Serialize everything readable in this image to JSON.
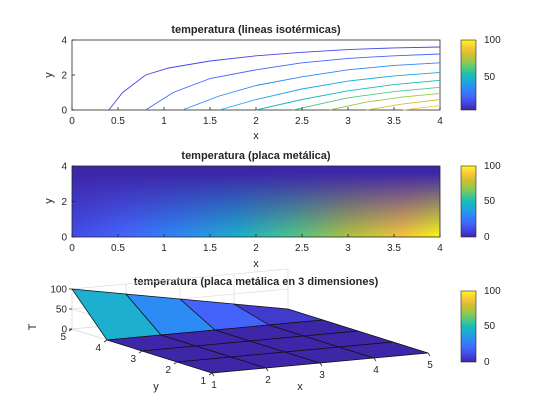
{
  "colormap": [
    "#3e26a8",
    "#4347e2",
    "#4367fd",
    "#2e87f7",
    "#1fa6df",
    "#18bdb6",
    "#53c981",
    "#9ac84a",
    "#d3bf2e",
    "#fcc83a",
    "#f9fb15"
  ],
  "chart_data": [
    {
      "type": "contour",
      "title": "temperatura (lineas isotérmicas)",
      "xlabel": "x",
      "ylabel": "y",
      "xlim": [
        0,
        4
      ],
      "ylim": [
        0,
        4
      ],
      "xticks": [
        "0",
        "0.5",
        "1",
        "1.5",
        "2",
        "2.5",
        "3",
        "3.5",
        "4"
      ],
      "yticks": [
        "0",
        "2",
        "4"
      ],
      "colorbar": {
        "ticks": [
          "50",
          "100"
        ],
        "range": [
          0,
          100
        ]
      },
      "series": [
        {
          "level": 10,
          "x": [
            0.4,
            0.55,
            0.8,
            1.05,
            1.5,
            2,
            2.5,
            3,
            3.5,
            4
          ],
          "y": [
            0,
            1,
            2,
            2.4,
            2.8,
            3.1,
            3.3,
            3.45,
            3.55,
            3.6
          ]
        },
        {
          "level": 20,
          "x": [
            0.8,
            1.1,
            1.5,
            2,
            2.5,
            3,
            3.5,
            4
          ],
          "y": [
            0,
            1,
            1.8,
            2.3,
            2.7,
            2.95,
            3.1,
            3.2
          ]
        },
        {
          "level": 30,
          "x": [
            1.2,
            1.6,
            2,
            2.5,
            3,
            3.5,
            4
          ],
          "y": [
            0,
            0.8,
            1.4,
            1.9,
            2.3,
            2.55,
            2.7
          ]
        },
        {
          "level": 40,
          "x": [
            1.6,
            2,
            2.5,
            3,
            3.5,
            4
          ],
          "y": [
            0,
            0.6,
            1.2,
            1.65,
            1.95,
            2.15
          ]
        },
        {
          "level": 50,
          "x": [
            2,
            2.5,
            3,
            3.5,
            4
          ],
          "y": [
            0,
            0.6,
            1.1,
            1.45,
            1.7
          ]
        },
        {
          "level": 60,
          "x": [
            2.4,
            3,
            3.5,
            4
          ],
          "y": [
            0,
            0.7,
            1.05,
            1.3
          ]
        },
        {
          "level": 70,
          "x": [
            2.8,
            3.2,
            3.6,
            4
          ],
          "y": [
            0,
            0.45,
            0.75,
            0.95
          ]
        },
        {
          "level": 80,
          "x": [
            3.2,
            3.6,
            4
          ],
          "y": [
            0,
            0.35,
            0.6
          ]
        },
        {
          "level": 90,
          "x": [
            3.6,
            4
          ],
          "y": [
            0,
            0.25
          ]
        }
      ]
    },
    {
      "type": "heatmap",
      "title": "temperatura (placa metálica)",
      "xlabel": "x",
      "ylabel": "y",
      "xlim": [
        0,
        4
      ],
      "ylim": [
        0,
        4
      ],
      "xticks": [
        "0",
        "0.5",
        "1",
        "1.5",
        "2",
        "2.5",
        "3",
        "3.5",
        "4"
      ],
      "yticks": [
        "0",
        "2",
        "4"
      ],
      "colorbar": {
        "ticks": [
          "0",
          "50",
          "100"
        ],
        "range": [
          0,
          100
        ]
      }
    },
    {
      "type": "surface",
      "title": "temperatura (placa metálica en 3 dimensiones)",
      "xlabel": "x",
      "ylabel": "y",
      "zlabel": "T",
      "xlim": [
        1,
        5
      ],
      "ylim": [
        1,
        5
      ],
      "zlim": [
        0,
        100
      ],
      "xticks": [
        "1",
        "2",
        "3",
        "4",
        "5"
      ],
      "yticks": [
        "1",
        "2",
        "3",
        "4",
        "5"
      ],
      "zticks": [
        "0",
        "50",
        "100"
      ],
      "colorbar": {
        "ticks": [
          "0",
          "50",
          "100"
        ],
        "range": [
          0,
          100
        ]
      },
      "z": [
        [
          0,
          0,
          0,
          0,
          0
        ],
        [
          0,
          0,
          0,
          0,
          0
        ],
        [
          0,
          0,
          0,
          0,
          0
        ],
        [
          0,
          0,
          0,
          0,
          0
        ],
        [
          100,
          75,
          50,
          25,
          0
        ]
      ]
    }
  ]
}
